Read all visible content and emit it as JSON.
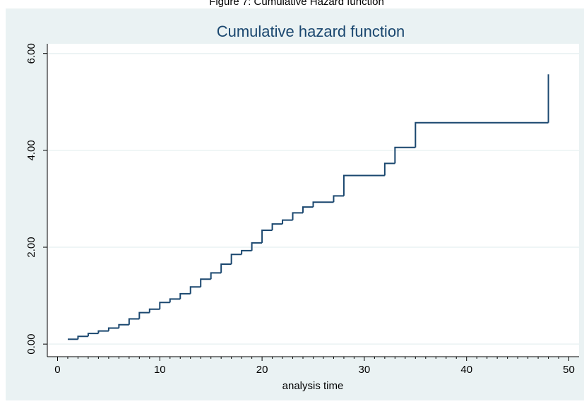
{
  "chart_data": {
    "type": "step",
    "caption": "Figure 7: Cumulative Hazard function",
    "title": "Cumulative hazard function",
    "x_label": "analysis time",
    "series": [
      {
        "color": "#1a476f",
        "x": [
          1,
          2,
          3,
          4,
          5,
          6,
          7,
          8,
          9,
          10,
          11,
          12,
          13,
          14,
          15,
          16,
          17,
          18,
          19,
          20,
          21,
          22,
          23,
          24,
          25,
          27,
          28,
          32,
          33,
          35,
          48
        ],
        "values": [
          0.1,
          0.16,
          0.22,
          0.27,
          0.33,
          0.4,
          0.52,
          0.65,
          0.72,
          0.86,
          0.93,
          1.04,
          1.18,
          1.34,
          1.47,
          1.65,
          1.85,
          1.93,
          2.09,
          2.35,
          2.48,
          2.56,
          2.71,
          2.83,
          2.93,
          3.06,
          3.48,
          3.73,
          4.06,
          4.57,
          5.57
        ]
      }
    ],
    "xlim": [
      -1,
      51
    ],
    "xticks": [
      0,
      10,
      20,
      30,
      40,
      50
    ],
    "xminorticks": [
      1,
      2,
      3,
      4,
      5,
      6,
      7,
      8,
      9,
      11,
      12,
      13,
      14,
      15,
      16,
      17,
      18,
      19,
      21,
      22,
      23,
      24,
      25,
      26,
      27,
      28,
      29,
      31,
      32,
      33,
      34,
      35,
      36,
      37,
      38,
      39,
      41,
      42,
      43,
      44,
      45,
      46,
      47,
      48,
      49
    ],
    "ylim": [
      -0.26,
      6.2
    ],
    "yticks": [
      {
        "value": 0,
        "label": "0.00"
      },
      {
        "value": 2,
        "label": "2.00"
      },
      {
        "value": 4,
        "label": "4.00"
      },
      {
        "value": 6,
        "label": "6.00"
      }
    ],
    "grid": true
  }
}
